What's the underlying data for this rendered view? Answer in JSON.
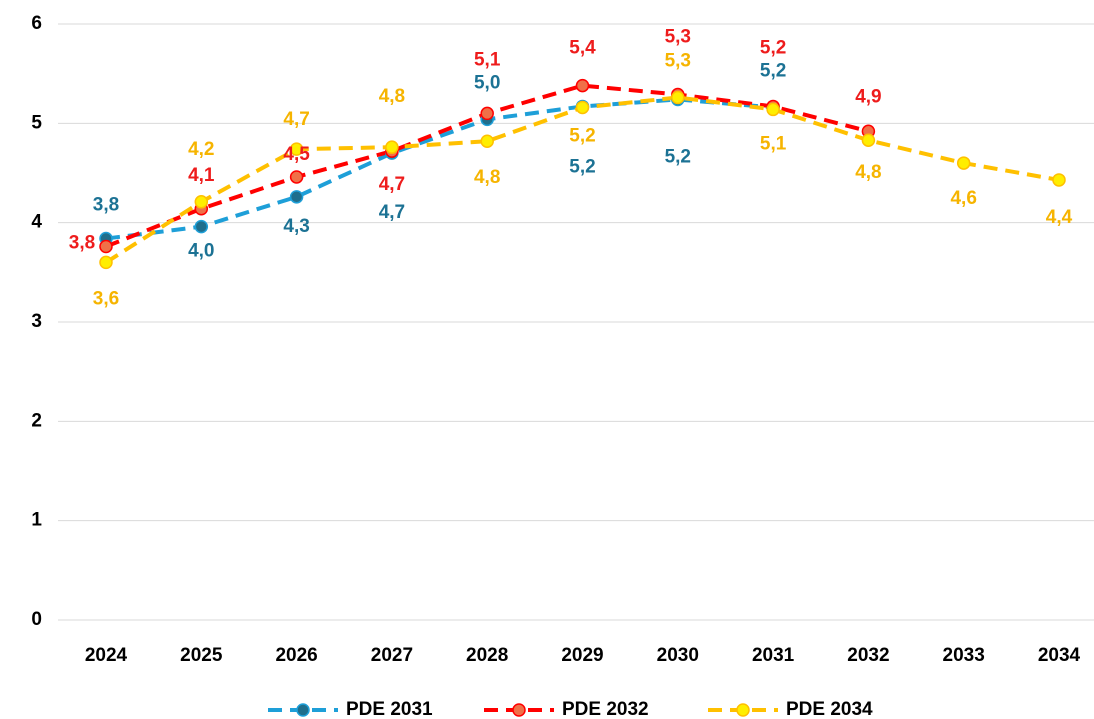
{
  "chart_data": {
    "type": "line",
    "categories": [
      "2024",
      "2025",
      "2026",
      "2027",
      "2028",
      "2029",
      "2030",
      "2031",
      "2032",
      "2033",
      "2034"
    ],
    "series": [
      {
        "name": "PDE 2031",
        "color": "#1e9fd8",
        "marker_color": "#1f6e8c",
        "label_color": "#1c7294",
        "values": [
          3.84,
          3.96,
          4.26,
          4.7,
          5.04,
          5.17,
          5.24,
          5.16,
          null,
          null,
          null
        ],
        "value_labels": [
          "3,8",
          "4,0",
          "4,3",
          "4,7",
          "5,0",
          "5,2",
          "5,2",
          "5,2",
          null,
          null,
          null
        ]
      },
      {
        "name": "PDE 2032",
        "color": "#ff0000",
        "marker_color": "#f07048",
        "label_color": "#ee1c1c",
        "values": [
          3.76,
          4.14,
          4.46,
          4.72,
          5.1,
          5.38,
          5.29,
          5.17,
          4.92,
          null,
          null
        ],
        "value_labels": [
          "3,8",
          "4,1",
          "4,5",
          "4,7",
          "5,1",
          "5,4",
          "5,3",
          "5,2",
          "4,9",
          null,
          null
        ]
      },
      {
        "name": "PDE 2034",
        "color": "#ffc000",
        "marker_color": "#ffee00",
        "label_color": "#f6b400",
        "values": [
          3.6,
          4.21,
          4.74,
          4.76,
          4.82,
          5.16,
          5.26,
          5.14,
          4.83,
          4.6,
          4.43
        ],
        "value_labels": [
          "3,6",
          "4,2",
          "4,7",
          "4,8",
          "4,8",
          "5,2",
          "5,3",
          "5,1",
          "4,8",
          "4,6",
          "4,4"
        ]
      }
    ],
    "ylim": [
      0,
      6
    ],
    "yticks": [
      0,
      1,
      2,
      3,
      4,
      5,
      6
    ],
    "grid": true,
    "legend": "bottom"
  }
}
